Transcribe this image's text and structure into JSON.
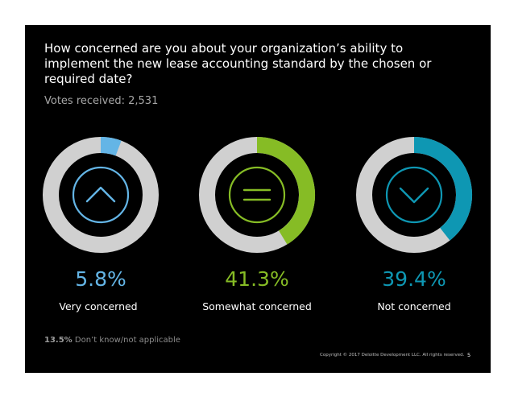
{
  "question": "How concerned are you about your organization’s ability to implement the new lease accounting standard by the chosen or required date?",
  "votes": {
    "label": "Votes received:",
    "value": "2,531"
  },
  "chart_data": {
    "type": "pie",
    "title": "How concerned are you about your organization’s ability to implement the new lease accounting standard by the chosen or required date?",
    "track_color": "#d0d0d0",
    "series": [
      {
        "name": "Very concerned",
        "value": 5.8,
        "label": "5.8%",
        "color": "#64b5e6",
        "icon": "chevron-up-icon"
      },
      {
        "name": "Somewhat concerned",
        "value": 41.3,
        "label": "41.3%",
        "color": "#86bc25",
        "icon": "equals-icon"
      },
      {
        "name": "Not concerned",
        "value": 39.4,
        "label": "39.4%",
        "color": "#0e97b3",
        "icon": "chevron-down-icon"
      }
    ],
    "other": {
      "value": 13.5,
      "label": "13.5%",
      "name": "Don’t know/not applicable"
    }
  },
  "footer": {
    "copyright": "Copyright © 2017 Deloitte Development LLC. All rights reserved.",
    "page": "5"
  }
}
